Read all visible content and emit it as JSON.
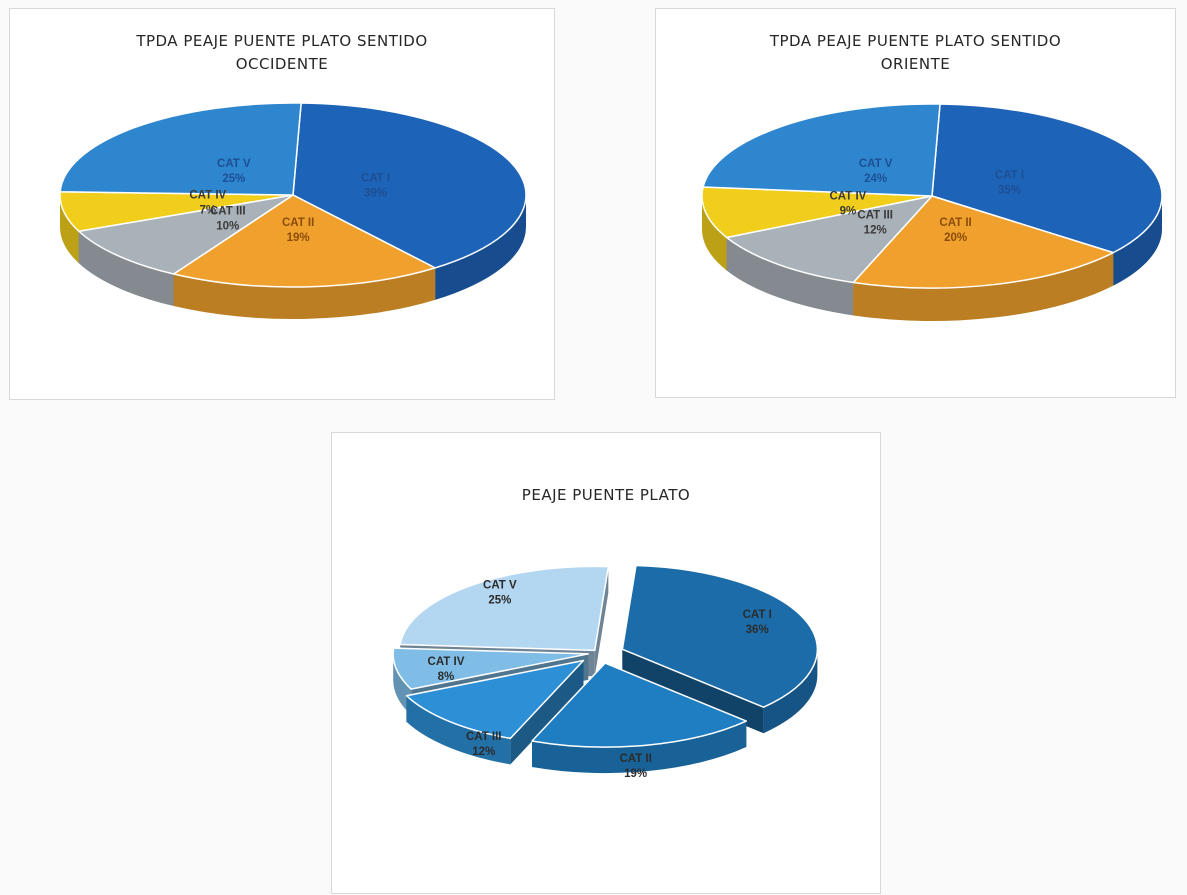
{
  "chart_data": [
    {
      "type": "pie",
      "title_line1": "TPDA PEAJE PUENTE PLATO SENTIDO",
      "title_line2": "OCCIDENTE",
      "categories": [
        "CAT I",
        "CAT II",
        "CAT III",
        "CAT IV",
        "CAT V"
      ],
      "values": [
        39,
        19,
        10,
        7,
        25
      ],
      "labels": [
        "39%",
        "19%",
        "10%",
        "7%",
        "25%"
      ],
      "colors": [
        "#1d63b7",
        "#f0a12d",
        "#a9b1b9",
        "#f1cd1c",
        "#2e86cf"
      ]
    },
    {
      "type": "pie",
      "title_line1": "TPDA PEAJE PUENTE PLATO SENTIDO",
      "title_line2": "ORIENTE",
      "categories": [
        "CAT I",
        "CAT II",
        "CAT III",
        "CAT IV",
        "CAT V"
      ],
      "values": [
        35,
        20,
        12,
        9,
        24
      ],
      "labels": [
        "35%",
        "20%",
        "12%",
        "9%",
        "24%"
      ],
      "colors": [
        "#1d63b7",
        "#f0a12d",
        "#a9b1b9",
        "#f1cd1c",
        "#2e86cf"
      ]
    },
    {
      "type": "pie",
      "title_line1": "PEAJE PUENTE PLATO",
      "categories": [
        "CAT I",
        "CAT II",
        "CAT III",
        "CAT IV",
        "CAT V"
      ],
      "values": [
        36,
        19,
        12,
        8,
        25
      ],
      "labels": [
        "36%",
        "19%",
        "12%",
        "8%",
        "25%"
      ],
      "colors": [
        "#1b6ca9",
        "#1f7dc2",
        "#2d90d6",
        "#7fbde6",
        "#b3d7f1"
      ]
    }
  ]
}
